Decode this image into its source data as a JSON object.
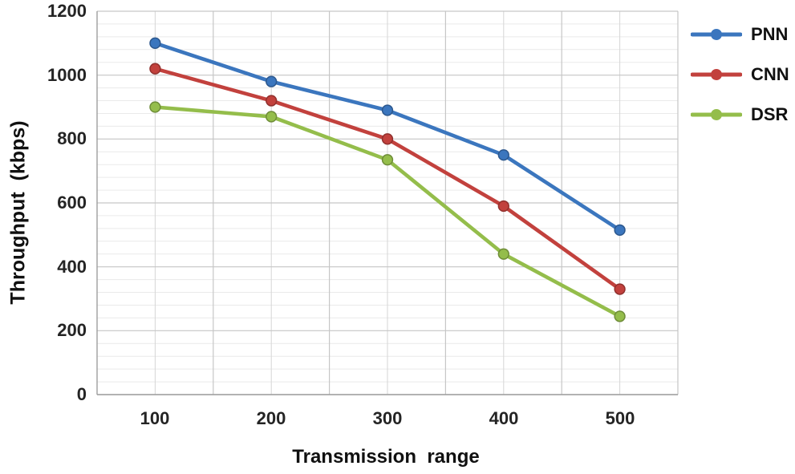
{
  "chart_data": {
    "type": "line",
    "title": "",
    "xlabel": "Transmission  range",
    "ylabel": "Throughput  (kbps)",
    "categories": [
      100,
      200,
      300,
      400,
      500
    ],
    "series": [
      {
        "name": "PNN",
        "color": "#3B76BE",
        "values": [
          1100,
          980,
          890,
          750,
          515
        ]
      },
      {
        "name": "CNN",
        "color": "#C2413D",
        "values": [
          1020,
          920,
          800,
          590,
          330
        ]
      },
      {
        "name": "DSR",
        "color": "#94BD4B",
        "values": [
          900,
          870,
          735,
          440,
          245
        ]
      }
    ],
    "ylim": [
      0,
      1200
    ],
    "y_major": 200,
    "y_minor": 40,
    "yticks": [
      "1200",
      "1000",
      "800",
      "600",
      "400",
      "200",
      "0"
    ],
    "xticklabels": [
      "100",
      "200",
      "300",
      "400",
      "500"
    ],
    "grid": "on",
    "legend_position": "right",
    "style": {
      "background": "#ffffff",
      "axis_line": "#9E9E9E",
      "major_grid": "#C6C6C6",
      "minor_grid": "#EAEAEA",
      "center_grid": "#D6D6D6",
      "tick_label_color": "#242424",
      "title_color": "#101010",
      "line_width": 4.6,
      "marker_radius": 6.4
    }
  }
}
